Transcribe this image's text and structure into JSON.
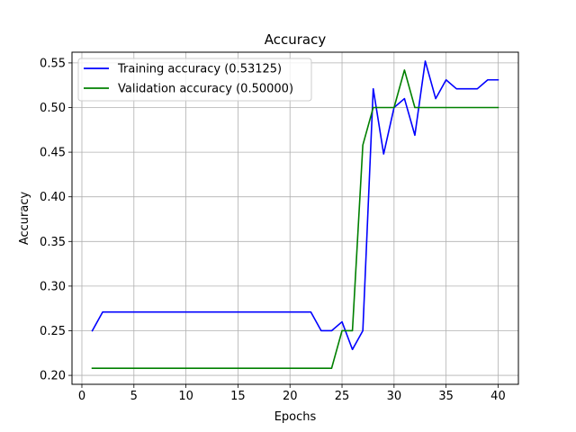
{
  "chart_data": {
    "type": "line",
    "title": "Accuracy",
    "xlabel": "Epochs",
    "ylabel": "Accuracy",
    "xlim": [
      -0.95,
      41.95
    ],
    "ylim": [
      0.19,
      0.562
    ],
    "xticks": [
      0,
      5,
      10,
      15,
      20,
      25,
      30,
      35,
      40
    ],
    "yticks": [
      0.2,
      0.25,
      0.3,
      0.35,
      0.4,
      0.45,
      0.5,
      0.55
    ],
    "xtick_labels": [
      "0",
      "5",
      "10",
      "15",
      "20",
      "25",
      "30",
      "35",
      "40"
    ],
    "ytick_labels": [
      "0.20",
      "0.25",
      "0.30",
      "0.35",
      "0.40",
      "0.45",
      "0.50",
      "0.55"
    ],
    "grid": true,
    "legend_position": "top-left",
    "x": [
      1,
      2,
      3,
      4,
      5,
      6,
      7,
      8,
      9,
      10,
      11,
      12,
      13,
      14,
      15,
      16,
      17,
      18,
      19,
      20,
      21,
      22,
      23,
      24,
      25,
      26,
      27,
      28,
      29,
      30,
      31,
      32,
      33,
      34,
      35,
      36,
      37,
      38,
      39,
      40
    ],
    "series": [
      {
        "name": "Training accuracy (0.53125)",
        "color": "#0000ff",
        "values": [
          0.25,
          0.271,
          0.271,
          0.271,
          0.271,
          0.271,
          0.271,
          0.271,
          0.271,
          0.271,
          0.271,
          0.271,
          0.271,
          0.271,
          0.271,
          0.271,
          0.271,
          0.271,
          0.271,
          0.271,
          0.271,
          0.271,
          0.25,
          0.25,
          0.26,
          0.229,
          0.25,
          0.521,
          0.448,
          0.5,
          0.51,
          0.469,
          0.552,
          0.51,
          0.531,
          0.521,
          0.521,
          0.521,
          0.531,
          0.531
        ]
      },
      {
        "name": "Validation accuracy (0.50000)",
        "color": "#008000",
        "values": [
          0.208,
          0.208,
          0.208,
          0.208,
          0.208,
          0.208,
          0.208,
          0.208,
          0.208,
          0.208,
          0.208,
          0.208,
          0.208,
          0.208,
          0.208,
          0.208,
          0.208,
          0.208,
          0.208,
          0.208,
          0.208,
          0.208,
          0.208,
          0.208,
          0.25,
          0.25,
          0.458,
          0.5,
          0.5,
          0.5,
          0.542,
          0.5,
          0.5,
          0.5,
          0.5,
          0.5,
          0.5,
          0.5,
          0.5,
          0.5
        ]
      }
    ]
  }
}
